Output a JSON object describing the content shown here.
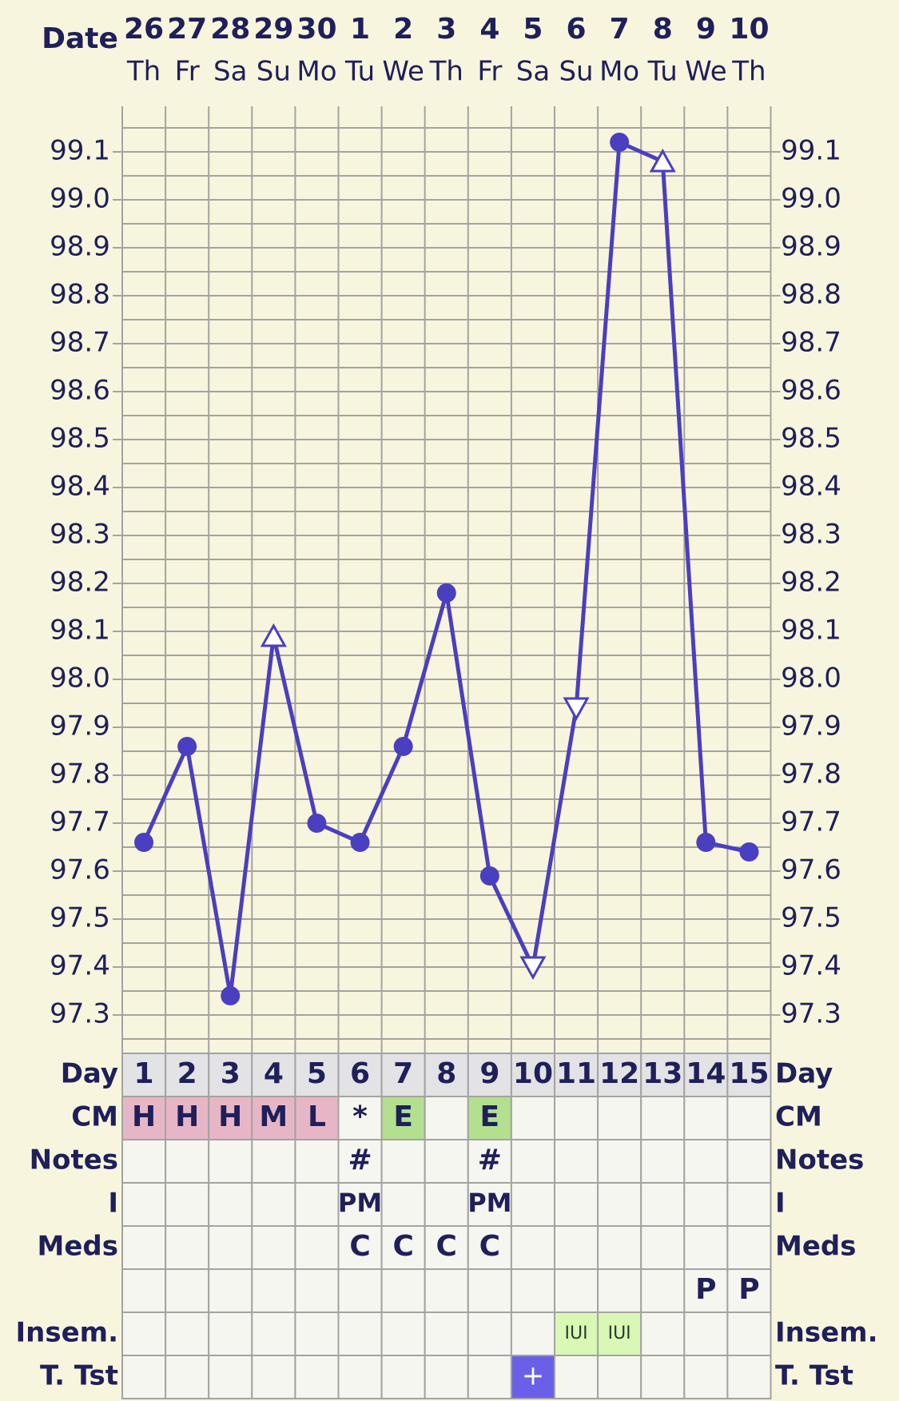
{
  "chart_data": {
    "type": "line",
    "header_label": "Date",
    "dates": [
      "26",
      "27",
      "28",
      "29",
      "30",
      "1",
      "2",
      "3",
      "4",
      "5",
      "6",
      "7",
      "8",
      "9",
      "10"
    ],
    "weekdays": [
      "Th",
      "Fr",
      "Sa",
      "Su",
      "Mo",
      "Tu",
      "We",
      "Th",
      "Fr",
      "Sa",
      "Su",
      "Mo",
      "Tu",
      "We",
      "Th"
    ],
    "y_ticks": [
      "99.1",
      "99.0",
      "98.9",
      "98.8",
      "98.7",
      "98.6",
      "98.5",
      "98.4",
      "98.3",
      "98.2",
      "98.1",
      "98.0",
      "97.9",
      "97.8",
      "97.7",
      "97.6",
      "97.5",
      "97.4",
      "97.3"
    ],
    "ylim": [
      97.3,
      99.1
    ],
    "grid": true,
    "series": [
      {
        "values": [
          97.66,
          97.86,
          97.34,
          98.09,
          97.7,
          97.66,
          97.86,
          98.18,
          97.59,
          97.4,
          97.94,
          99.12,
          99.08,
          97.66,
          97.64
        ],
        "markers": [
          "dot",
          "dot",
          "dot",
          "tri-up",
          "dot",
          "dot",
          "dot",
          "dot",
          "dot",
          "tri-down",
          "tri-down",
          "dot",
          "tri-up",
          "dot",
          "dot"
        ],
        "color": "#4a3fbf"
      }
    ],
    "rows": [
      {
        "label": "Day",
        "cells": [
          "1",
          "2",
          "3",
          "4",
          "5",
          "6",
          "7",
          "8",
          "9",
          "10",
          "11",
          "12",
          "13",
          "14",
          "15"
        ]
      },
      {
        "label": "CM",
        "cells": [
          "H",
          "H",
          "H",
          "M",
          "L",
          "*",
          "E",
          "",
          "E",
          "",
          "",
          "",
          "",
          "",
          ""
        ]
      },
      {
        "label": "Notes",
        "cells": [
          "",
          "",
          "",
          "",
          "",
          "#",
          "",
          "",
          "#",
          "",
          "",
          "",
          "",
          "",
          ""
        ]
      },
      {
        "label": "I",
        "cells": [
          "",
          "",
          "",
          "",
          "",
          "PM",
          "",
          "",
          "PM",
          "",
          "",
          "",
          "",
          "",
          ""
        ]
      },
      {
        "label": "Meds",
        "cells": [
          "",
          "",
          "",
          "",
          "",
          "C",
          "C",
          "C",
          "C",
          "",
          "",
          "",
          "",
          "",
          ""
        ]
      },
      {
        "label": "",
        "cells": [
          "",
          "",
          "",
          "",
          "",
          "",
          "",
          "",
          "",
          "",
          "",
          "",
          "",
          "P",
          "P"
        ]
      },
      {
        "label": "Insem.",
        "cells": [
          "",
          "",
          "",
          "",
          "",
          "",
          "",
          "",
          "",
          "",
          "IUI",
          "IUI",
          "",
          "",
          ""
        ]
      },
      {
        "label": "T. Tst",
        "cells": [
          "",
          "",
          "",
          "",
          "",
          "",
          "",
          "",
          "",
          "+",
          "",
          "",
          "",
          "",
          ""
        ]
      }
    ],
    "colors": {
      "background": "#f7f5dd",
      "line": "#4a3fbf",
      "grid": "#a3a3a0",
      "text": "#1f1f5a",
      "day_cell": "#e3e3e6",
      "cm_pink": "#e7b6c6",
      "cm_green": "#b2e08f",
      "insem_green": "#d9f7b5",
      "tst_blue": "#6a60e8",
      "table_cell": "#f6f6f1"
    }
  }
}
